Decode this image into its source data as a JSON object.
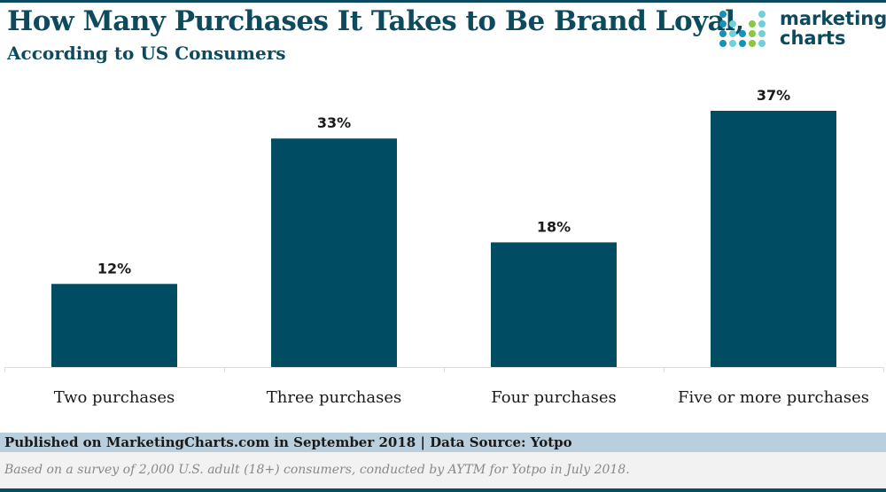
{
  "header": {
    "title": "How Many Purchases It Takes to Be Brand Loyal,",
    "subtitle": "According to US Consumers"
  },
  "logo": {
    "text_line1": "marketing",
    "text_line2": "charts"
  },
  "chart_data": {
    "type": "bar",
    "title": "How Many Purchases It Takes to Be Brand Loyal, According to US Consumers",
    "categories": [
      "Two purchases",
      "Three purchases",
      "Four purchases",
      "Five or more purchases"
    ],
    "values": [
      12,
      33,
      18,
      37
    ],
    "data_labels": [
      "12%",
      "33%",
      "18%",
      "37%"
    ],
    "unit": "%",
    "ylim": [
      0,
      37
    ],
    "grid": false,
    "bar_color": "#004d63",
    "label_color": "#1a1a1a"
  },
  "footer": {
    "published": "Published on MarketingCharts.com in September 2018 | Data Source: Yotpo",
    "note": "Based on a survey of 2,000 U.S. adult (18+) consumers, conducted by AYTM for Yotpo in July 2018."
  }
}
